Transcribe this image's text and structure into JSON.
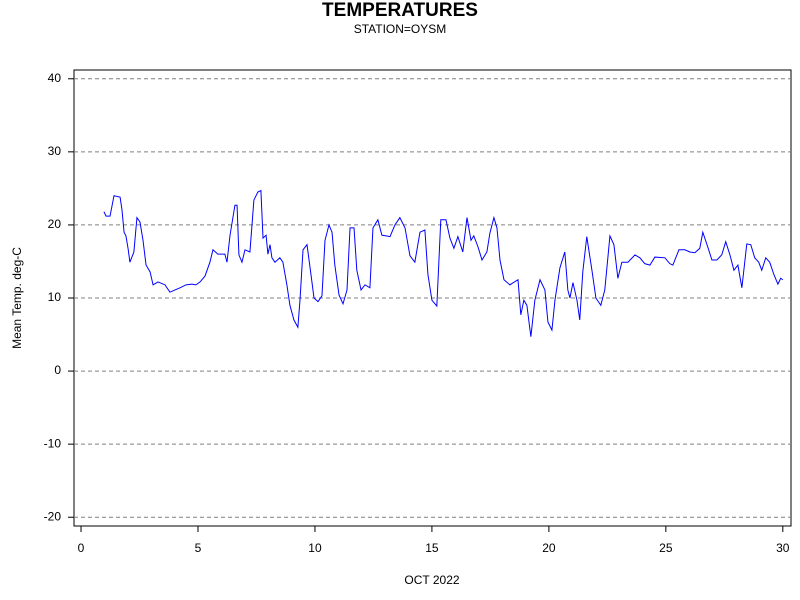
{
  "chart_data": {
    "type": "line",
    "title": "TEMPERATURES",
    "subtitle": "STATION=OYSM",
    "x_label": "OCT 2022",
    "y_label": "Mean Temp. deg-C",
    "xlim": [
      -0.3,
      30.35
    ],
    "ylim": [
      -21.2,
      41.2
    ],
    "xticks": [
      0,
      5,
      10,
      15,
      20,
      25,
      30
    ],
    "yticks": [
      -20,
      -10,
      0,
      10,
      20,
      30,
      40
    ],
    "grid": true,
    "series": [
      {
        "name": "Mean Temp. deg-C",
        "color": "#0000ff",
        "x": [
          0.98,
          1.07,
          1.24,
          1.41,
          1.67,
          1.75,
          1.84,
          1.92,
          2.01,
          2.09,
          2.26,
          2.39,
          2.52,
          2.65,
          2.78,
          2.95,
          3.08,
          3.29,
          3.59,
          3.8,
          4.02,
          4.23,
          4.49,
          4.74,
          4.91,
          5.09,
          5.3,
          5.51,
          5.64,
          5.85,
          6.15,
          6.24,
          6.37,
          6.58,
          6.67,
          6.75,
          6.88,
          7.01,
          7.22,
          7.39,
          7.56,
          7.69,
          7.78,
          7.91,
          7.99,
          8.08,
          8.16,
          8.29,
          8.5,
          8.63,
          8.8,
          8.93,
          9.1,
          9.27,
          9.36,
          9.49,
          9.66,
          9.83,
          9.96,
          10.13,
          10.3,
          10.43,
          10.6,
          10.73,
          10.85,
          11.03,
          11.2,
          11.37,
          11.5,
          11.67,
          11.79,
          11.97,
          12.14,
          12.35,
          12.48,
          12.69,
          12.86,
          13.21,
          13.42,
          13.63,
          13.85,
          14.06,
          14.27,
          14.49,
          14.7,
          14.83,
          15.0,
          15.21,
          15.38,
          15.6,
          15.77,
          15.94,
          16.11,
          16.32,
          16.5,
          16.67,
          16.79,
          16.97,
          17.14,
          17.35,
          17.48,
          17.65,
          17.78,
          17.91,
          18.08,
          18.33,
          18.68,
          18.8,
          18.93,
          19.06,
          19.23,
          19.4,
          19.62,
          19.83,
          19.96,
          20.13,
          20.26,
          20.47,
          20.68,
          20.81,
          20.9,
          21.03,
          21.2,
          21.32,
          21.45,
          21.62,
          21.84,
          22.01,
          22.22,
          22.39,
          22.61,
          22.78,
          22.95,
          23.12,
          23.38,
          23.68,
          23.89,
          24.1,
          24.32,
          24.53,
          24.96,
          25.17,
          25.3,
          25.56,
          25.81,
          26.03,
          26.24,
          26.45,
          26.58,
          26.79,
          26.97,
          27.18,
          27.39,
          27.56,
          27.74,
          27.91,
          28.08,
          28.25,
          28.46,
          28.63,
          28.8,
          28.97,
          29.1,
          29.27,
          29.44,
          29.62,
          29.79,
          29.91,
          30.0
        ],
        "values": [
          21.8,
          21.2,
          21.2,
          24.0,
          23.8,
          22.1,
          19.0,
          18.5,
          16.8,
          14.9,
          16.3,
          21.0,
          20.4,
          17.9,
          14.5,
          13.6,
          11.8,
          12.2,
          11.8,
          10.8,
          11.1,
          11.4,
          11.8,
          11.9,
          11.8,
          12.2,
          13.0,
          14.9,
          16.6,
          16.0,
          16.0,
          14.9,
          18.6,
          22.7,
          22.7,
          15.9,
          14.9,
          16.6,
          16.3,
          23.4,
          24.5,
          24.7,
          18.2,
          18.6,
          16.0,
          17.3,
          15.5,
          14.9,
          15.5,
          14.9,
          11.8,
          9.0,
          7.0,
          6.0,
          9.7,
          16.6,
          17.3,
          13.2,
          10.0,
          9.5,
          10.3,
          17.9,
          20.0,
          19.0,
          14.5,
          10.4,
          9.2,
          11.1,
          19.6,
          19.6,
          13.8,
          11.1,
          11.8,
          11.4,
          19.6,
          20.7,
          18.6,
          18.4,
          20.0,
          21.0,
          19.6,
          15.8,
          14.9,
          19.0,
          19.3,
          13.2,
          9.7,
          8.9,
          20.7,
          20.7,
          18.2,
          16.8,
          18.4,
          16.3,
          21.0,
          17.9,
          18.5,
          17.0,
          15.2,
          16.3,
          18.9,
          21.0,
          19.6,
          15.2,
          12.5,
          11.8,
          12.5,
          7.7,
          9.7,
          9.0,
          4.7,
          9.7,
          12.5,
          11.1,
          6.7,
          5.6,
          9.7,
          14.1,
          16.3,
          11.1,
          10.0,
          12.1,
          9.7,
          7.0,
          13.6,
          18.4,
          13.8,
          10.0,
          9.0,
          11.1,
          18.5,
          17.3,
          12.7,
          14.9,
          14.9,
          15.9,
          15.5,
          14.7,
          14.5,
          15.6,
          15.5,
          14.7,
          14.5,
          16.6,
          16.6,
          16.3,
          16.2,
          16.8,
          19.0,
          17.0,
          15.2,
          15.2,
          15.9,
          17.7,
          15.9,
          13.8,
          14.5,
          11.4,
          17.4,
          17.3,
          15.5,
          14.9,
          13.8,
          15.5,
          14.9,
          13.2,
          11.9,
          12.7,
          12.5
        ]
      }
    ]
  }
}
